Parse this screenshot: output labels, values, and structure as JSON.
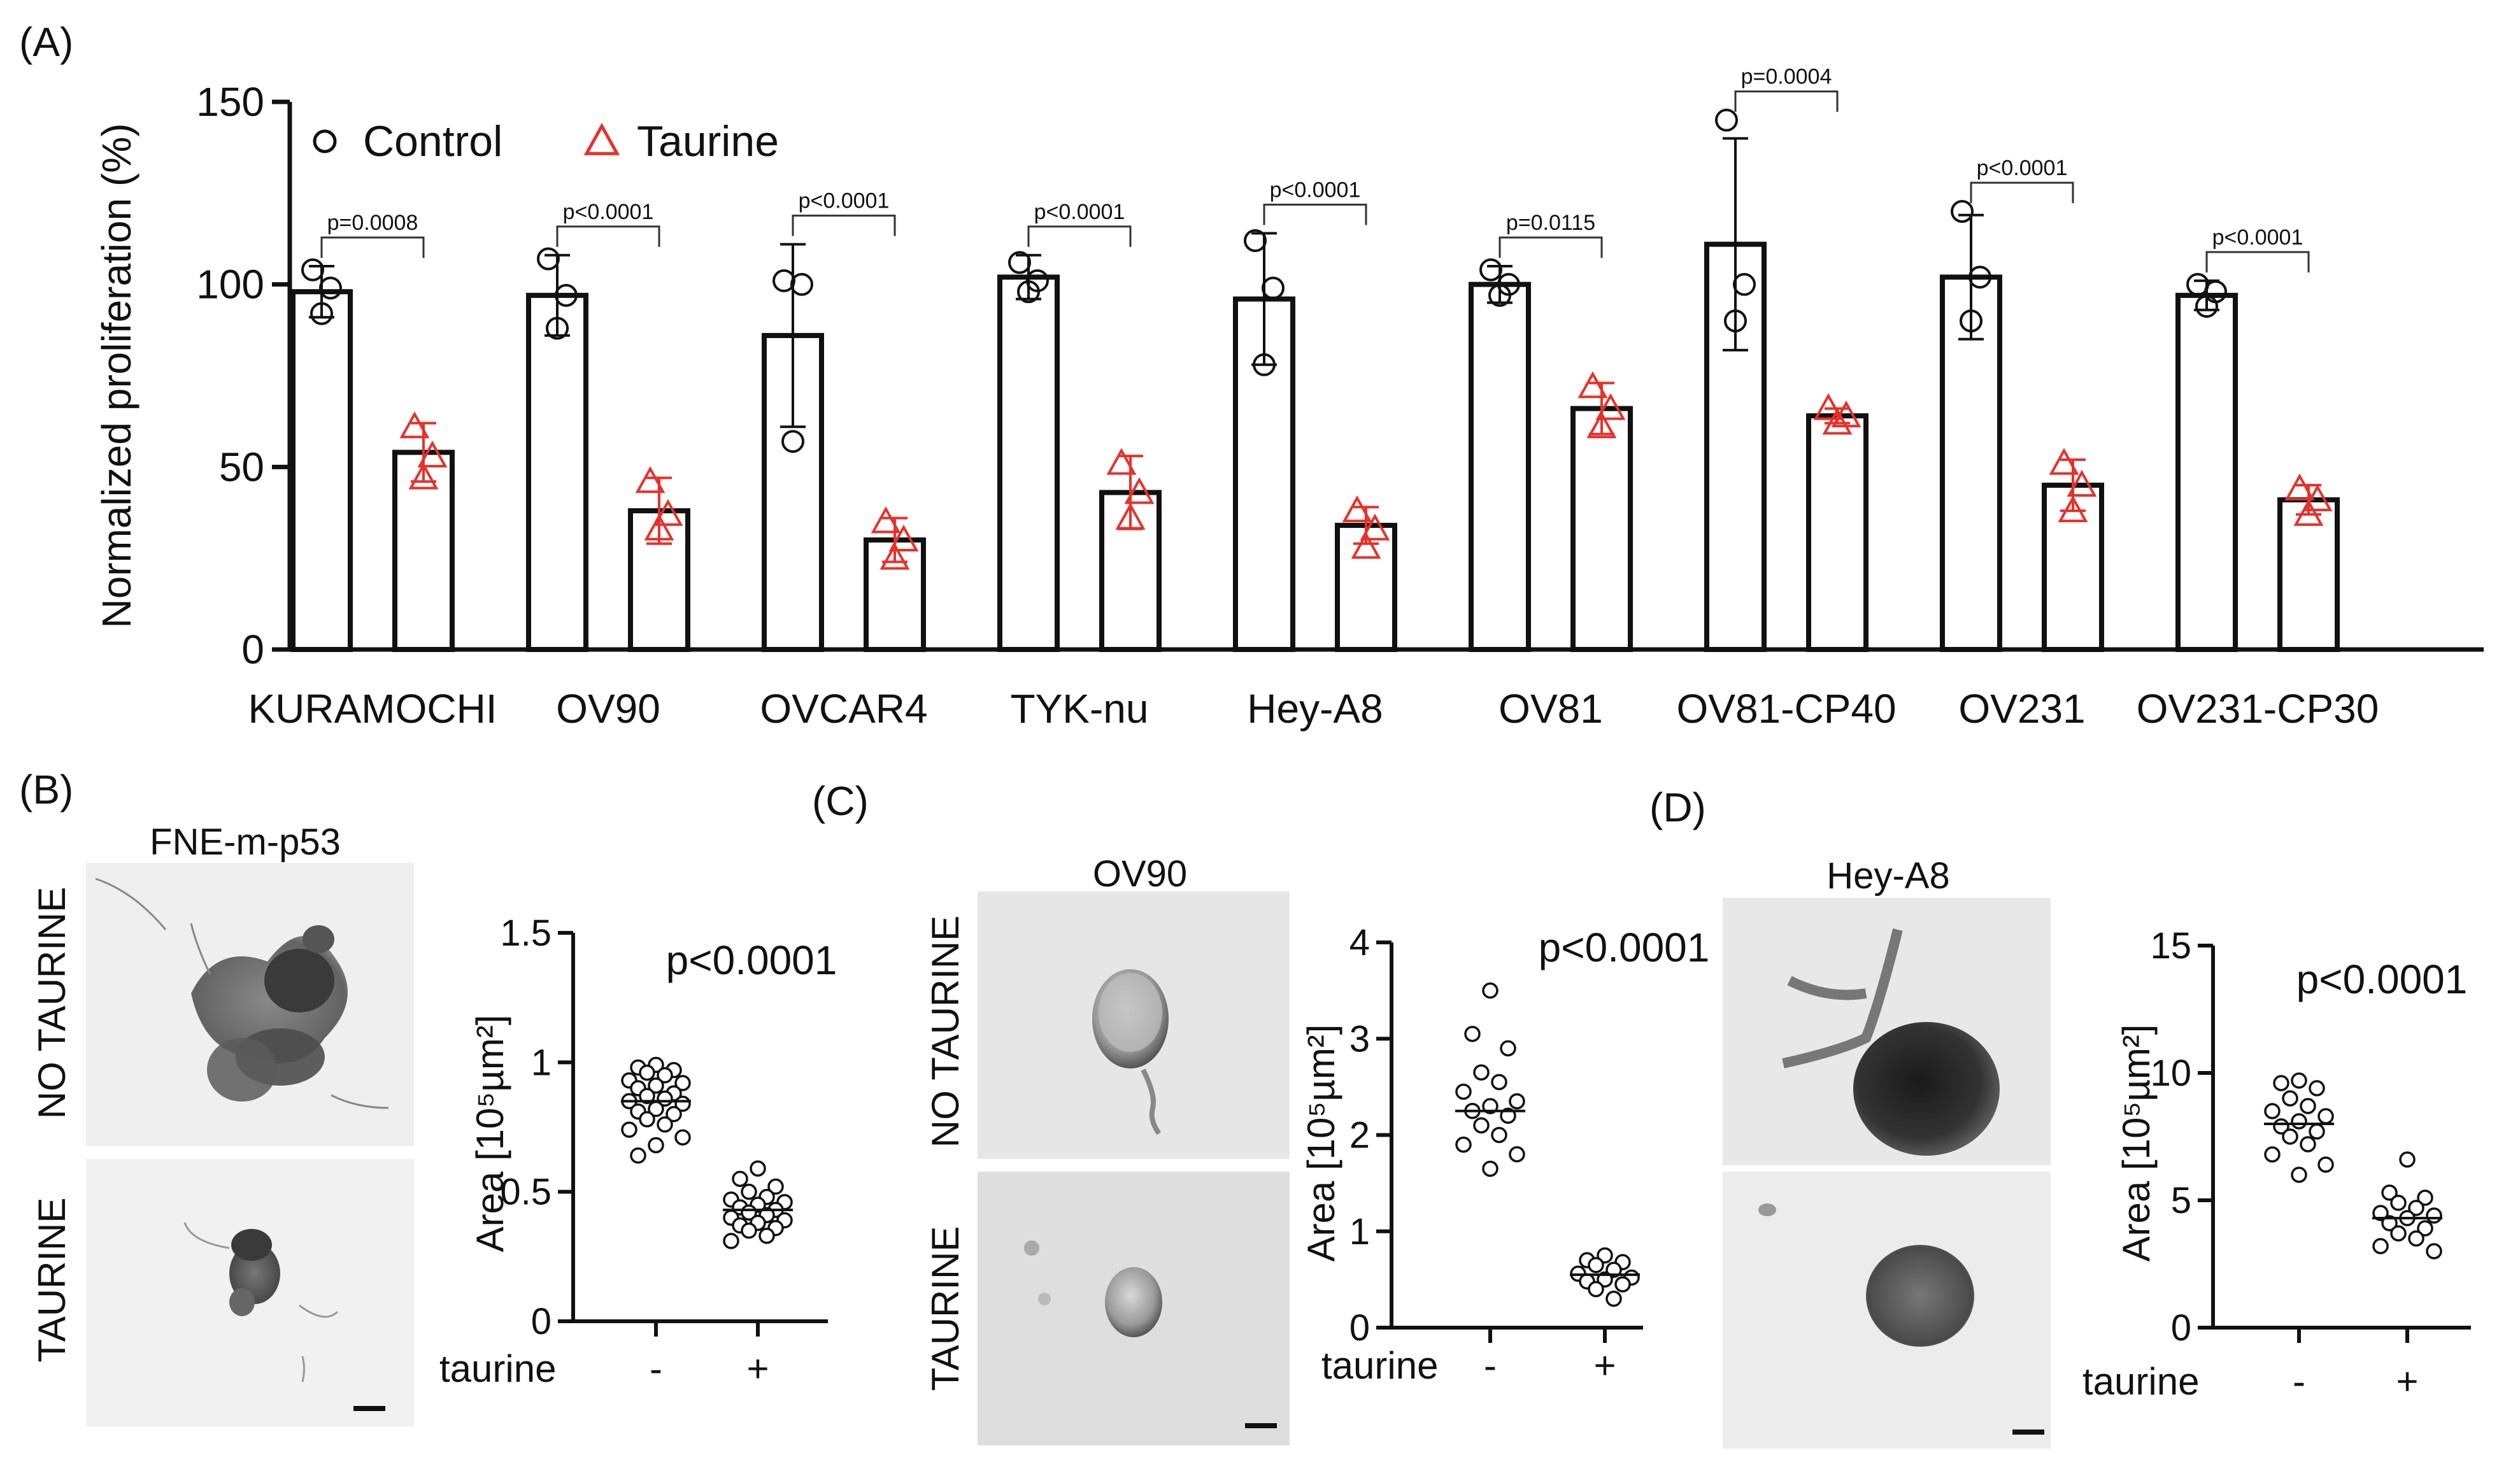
{
  "panels": {
    "A": {
      "letter": "(A)"
    },
    "B": {
      "letter": "(B)",
      "image_title": "FNE-m-p53",
      "row_no": "NO TAURINE",
      "row_yes": "TAURINE"
    },
    "C": {
      "letter": "(C)",
      "image_title": "OV90",
      "row_no": "NO TAURINE",
      "row_yes": "TAURINE"
    },
    "D": {
      "letter": "(D)",
      "image_title": "Hey-A8"
    }
  },
  "chart_data": [
    {
      "type": "bar",
      "panel": "A",
      "title": "",
      "ylabel": "Normalized proliferation (%)",
      "xlabel": "",
      "ylim": [
        0,
        150
      ],
      "yticks": [
        0,
        50,
        100,
        150
      ],
      "legend": {
        "position": "top-left",
        "entries": [
          {
            "name": "Control",
            "marker": "circle",
            "color": "#111111"
          },
          {
            "name": "Taurine",
            "marker": "triangle",
            "color": "#e8302a"
          }
        ]
      },
      "categories": [
        "KURAMOCHI",
        "OV90",
        "OVCAR4",
        "TYK-nu",
        "Hey-A8",
        "OV81",
        "OV81-CP40",
        "OV231",
        "OV231-CP30"
      ],
      "series": [
        {
          "name": "Control",
          "color": "#111111",
          "values": [
            98,
            97,
            86,
            102,
            96,
            100,
            111,
            102,
            97
          ],
          "errors": [
            7,
            11,
            25,
            6,
            18,
            5,
            29,
            17,
            4
          ],
          "points": [
            [
              104,
              99,
              92
            ],
            [
              107,
              97,
              88
            ],
            [
              101,
              100,
              57
            ],
            [
              106,
              101,
              98
            ],
            [
              112,
              99,
              78
            ],
            [
              104,
              100,
              97
            ],
            [
              145,
              100,
              90
            ],
            [
              120,
              102,
              90
            ],
            [
              100,
              98,
              94
            ]
          ]
        },
        {
          "name": "Taurine",
          "color": "#e8302a",
          "values": [
            54,
            38,
            30,
            43,
            34,
            66,
            64,
            45,
            41
          ],
          "errors": [
            8,
            9,
            6,
            10,
            5,
            7,
            2,
            7,
            4
          ],
          "points": [
            [
              61,
              53,
              47
            ],
            [
              46,
              37,
              33
            ],
            [
              35,
              30,
              25
            ],
            [
              51,
              43,
              36
            ],
            [
              38,
              33,
              28
            ],
            [
              72,
              66,
              61
            ],
            [
              66,
              64,
              62
            ],
            [
              51,
              45,
              38
            ],
            [
              44,
              41,
              37
            ]
          ]
        }
      ],
      "pvalues": [
        "p=0.0008",
        "p<0.0001",
        "p<0.0001",
        "p<0.0001",
        "p<0.0001",
        "p=0.0115",
        "p=0.0004",
        "p<0.0001",
        "p<0.0001"
      ]
    },
    {
      "type": "scatter",
      "panel": "B",
      "ylabel": "Area [10⁵µm²]",
      "group_label": "taurine",
      "categories": [
        "-",
        "+"
      ],
      "ylim": [
        0,
        1.5
      ],
      "yticks": [
        0,
        0.5,
        1,
        1.5
      ],
      "ytick_labels": [
        "0",
        "0.5",
        "1",
        "1.5"
      ],
      "pvalue": "p<0.0001",
      "series": [
        {
          "name": "-",
          "values": [
            0.99,
            0.98,
            0.97,
            0.96,
            0.95,
            0.93,
            0.92,
            0.91,
            0.9,
            0.88,
            0.87,
            0.86,
            0.85,
            0.84,
            0.82,
            0.81,
            0.8,
            0.78,
            0.76,
            0.74,
            0.71,
            0.68,
            0.64
          ],
          "median": 0.85
        },
        {
          "name": "+",
          "values": [
            0.59,
            0.55,
            0.52,
            0.5,
            0.48,
            0.47,
            0.46,
            0.45,
            0.44,
            0.43,
            0.42,
            0.41,
            0.4,
            0.39,
            0.38,
            0.37,
            0.36,
            0.35,
            0.33,
            0.31
          ],
          "median": 0.43
        }
      ]
    },
    {
      "type": "scatter",
      "panel": "C",
      "ylabel": "Area [10⁵µm²]",
      "group_label": "taurine",
      "categories": [
        "-",
        "+"
      ],
      "ylim": [
        0,
        4
      ],
      "yticks": [
        0,
        1,
        2,
        3,
        4
      ],
      "ytick_labels": [
        "0",
        "1",
        "2",
        "3",
        "4"
      ],
      "pvalue": "p<0.0001",
      "series": [
        {
          "name": "-",
          "values": [
            3.5,
            3.05,
            2.9,
            2.65,
            2.55,
            2.45,
            2.35,
            2.3,
            2.25,
            2.2,
            2.1,
            2.0,
            1.9,
            1.8,
            1.65
          ],
          "median": 2.25
        },
        {
          "name": "+",
          "values": [
            0.75,
            0.7,
            0.68,
            0.65,
            0.6,
            0.56,
            0.52,
            0.5,
            0.48,
            0.45,
            0.4,
            0.3
          ],
          "median": 0.55
        }
      ]
    },
    {
      "type": "scatter",
      "panel": "D",
      "ylabel": "Area [10⁵µm²]",
      "group_label": "taurine",
      "categories": [
        "-",
        "+"
      ],
      "ylim": [
        0,
        15
      ],
      "yticks": [
        0,
        5,
        10,
        15
      ],
      "ytick_labels": [
        "0",
        "5",
        "10",
        "15"
      ],
      "pvalue": "p<0.0001",
      "series": [
        {
          "name": "-",
          "values": [
            9.7,
            9.6,
            9.4,
            9.0,
            8.7,
            8.5,
            8.3,
            8.1,
            7.9,
            7.7,
            7.5,
            7.2,
            6.8,
            6.4,
            6.0
          ],
          "median": 8.0
        },
        {
          "name": "+",
          "values": [
            6.6,
            5.3,
            5.1,
            4.9,
            4.7,
            4.5,
            4.4,
            4.3,
            4.1,
            3.9,
            3.7,
            3.5,
            3.2,
            3.0
          ],
          "median": 4.3
        }
      ]
    }
  ]
}
